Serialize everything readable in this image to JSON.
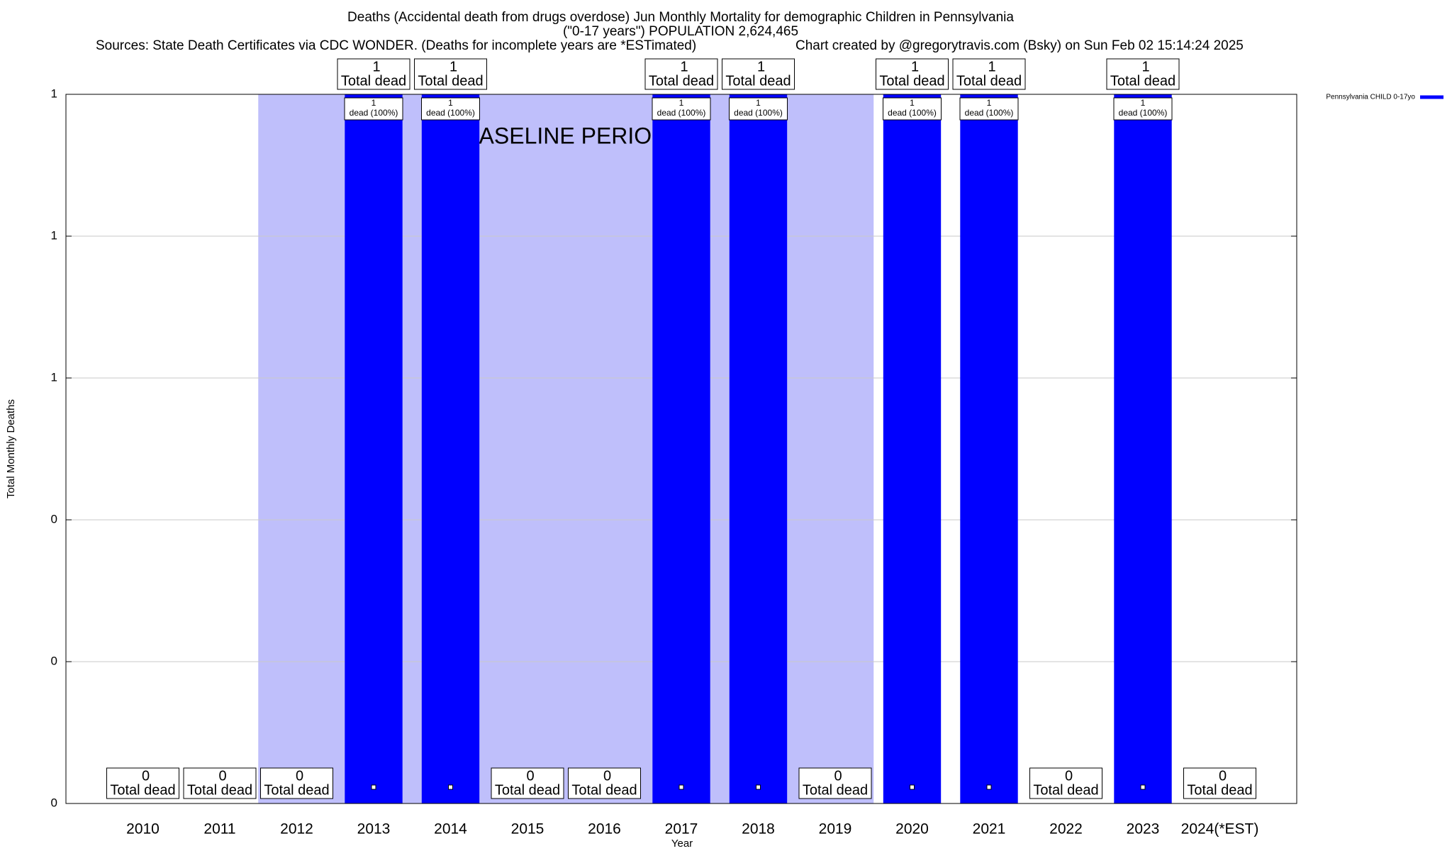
{
  "chart_data": {
    "type": "bar",
    "title": "Deaths (Accidental death from drugs overdose) Jun Monthly Mortality for demographic Children in Pennsylvania",
    "subtitle": "(\"0-17 years\") POPULATION 2,624,465",
    "source": "Sources: State Death Certificates via CDC WONDER. (Deaths for incomplete years are *ESTimated)",
    "credit": "Chart created by @gregorytravis.com (Bsky) on Sun Feb 02 15:14:24 2025",
    "x_label": "Year",
    "y_label": "Total Monthly Deaths",
    "categories": [
      "2010",
      "2011",
      "2012",
      "2013",
      "2014",
      "2015",
      "2016",
      "2017",
      "2018",
      "2019",
      "2020",
      "2021",
      "2022",
      "2023",
      "2024(*EST)"
    ],
    "series": [
      {
        "name": "Pennsylvania CHILD 0-17yo",
        "color": "#0000ff",
        "values": [
          0,
          0,
          0,
          1,
          1,
          0,
          0,
          1,
          1,
          0,
          1,
          1,
          0,
          1,
          0
        ]
      }
    ],
    "total_label": "Total dead",
    "share_labels": [
      null,
      null,
      null,
      "dead (100%)",
      "dead (100%)",
      null,
      null,
      "dead (100%)",
      "dead (100%)",
      null,
      "dead (100%)",
      "dead (100%)",
      null,
      "dead (100%)",
      null
    ],
    "baseline_period": {
      "label": "BASELINE PERIOD",
      "start": "2012",
      "end": "2019",
      "color": "#bfbffb"
    },
    "ylim": [
      0,
      1
    ],
    "yticks": [
      0,
      {
        "value": 0.2,
        "label": "0"
      },
      {
        "value": 0.4,
        "label": "0"
      },
      {
        "value": 0.6,
        "label": "1"
      },
      {
        "value": 0.8,
        "label": "1"
      },
      {
        "value": 1,
        "label": "1"
      }
    ],
    "grid": true,
    "legend": "top-right"
  }
}
